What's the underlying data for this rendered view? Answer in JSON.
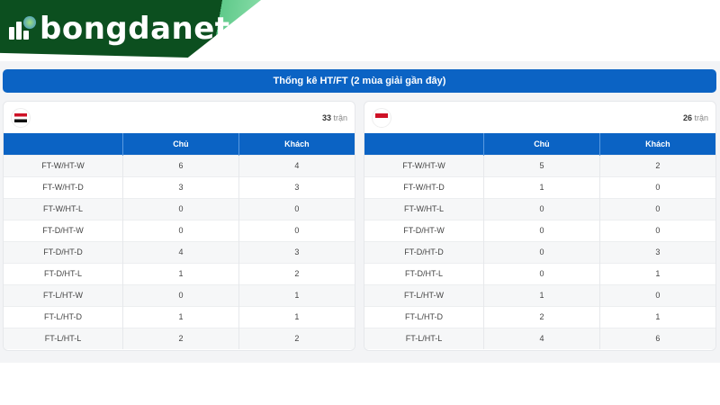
{
  "brand": {
    "name": "bongdanet"
  },
  "title": "Thống kê HT/FT (2 mùa giải gần đây)",
  "columns": [
    "",
    "Chủ",
    "Khách"
  ],
  "count_suffix": "trận",
  "teams": [
    {
      "flag": "iraq-flag",
      "matches": "33",
      "rows": [
        {
          "label": "FT-W/HT-W",
          "home": "6",
          "away": "4"
        },
        {
          "label": "FT-W/HT-D",
          "home": "3",
          "away": "3"
        },
        {
          "label": "FT-W/HT-L",
          "home": "0",
          "away": "0"
        },
        {
          "label": "FT-D/HT-W",
          "home": "0",
          "away": "0"
        },
        {
          "label": "FT-D/HT-D",
          "home": "4",
          "away": "3"
        },
        {
          "label": "FT-D/HT-L",
          "home": "1",
          "away": "2"
        },
        {
          "label": "FT-L/HT-W",
          "home": "0",
          "away": "1"
        },
        {
          "label": "FT-L/HT-D",
          "home": "1",
          "away": "1"
        },
        {
          "label": "FT-L/HT-L",
          "home": "2",
          "away": "2"
        }
      ]
    },
    {
      "flag": "indonesia-flag",
      "matches": "26",
      "rows": [
        {
          "label": "FT-W/HT-W",
          "home": "5",
          "away": "2"
        },
        {
          "label": "FT-W/HT-D",
          "home": "1",
          "away": "0"
        },
        {
          "label": "FT-W/HT-L",
          "home": "0",
          "away": "0"
        },
        {
          "label": "FT-D/HT-W",
          "home": "0",
          "away": "0"
        },
        {
          "label": "FT-D/HT-D",
          "home": "0",
          "away": "3"
        },
        {
          "label": "FT-D/HT-L",
          "home": "0",
          "away": "1"
        },
        {
          "label": "FT-L/HT-W",
          "home": "1",
          "away": "0"
        },
        {
          "label": "FT-L/HT-D",
          "home": "2",
          "away": "1"
        },
        {
          "label": "FT-L/HT-L",
          "home": "4",
          "away": "6"
        }
      ]
    }
  ],
  "colors": {
    "primary": "#0b63c4",
    "brand_green": "#0c4f1f"
  }
}
